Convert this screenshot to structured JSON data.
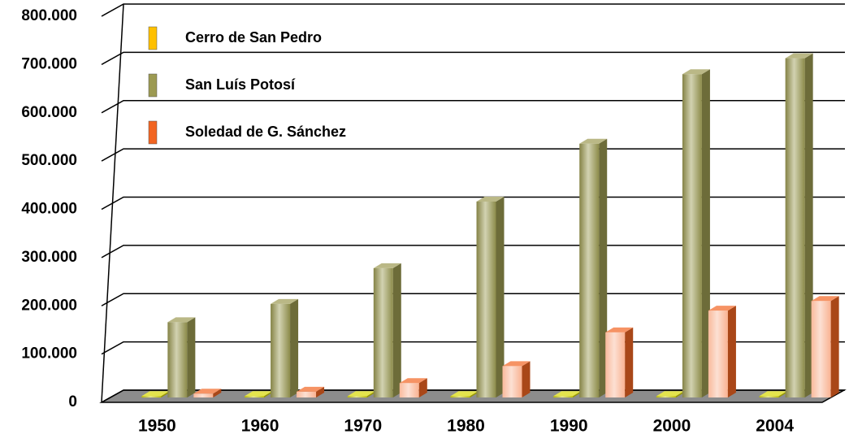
{
  "chart_data": {
    "type": "bar3d",
    "categories": [
      "1950",
      "1960",
      "1970",
      "1980",
      "1990",
      "2000",
      "2004"
    ],
    "series": [
      {
        "name": "Cerro de San Pedro",
        "color": "#d8d800",
        "legend_color": "#ffc000",
        "values": [
          3000,
          3000,
          3000,
          3000,
          3000,
          3000,
          3000
        ]
      },
      {
        "name": "San Luís Potosí",
        "color": "#9c9a52",
        "values": [
          156000,
          194000,
          268000,
          406000,
          526000,
          670000,
          703000
        ]
      },
      {
        "name": "Soledad de G. Sánchez",
        "color": "#f26522",
        "values": [
          8000,
          12000,
          30000,
          65000,
          135000,
          180000,
          200000
        ]
      }
    ],
    "ylim": [
      0,
      800000
    ],
    "yticks": [
      0,
      {
        "value": 100000,
        "label": "100.000"
      },
      {
        "value": 200000,
        "label": "200.000"
      },
      {
        "value": 300000,
        "label": "300.000"
      },
      {
        "value": 400000,
        "label": "400.000"
      },
      {
        "value": 500000,
        "label": "500.000"
      },
      {
        "value": 600000,
        "label": "600.000"
      },
      {
        "value": 700000,
        "label": "700.000"
      },
      {
        "value": 800000,
        "label": "800.000"
      }
    ],
    "grid": true,
    "legend": "upper left"
  }
}
